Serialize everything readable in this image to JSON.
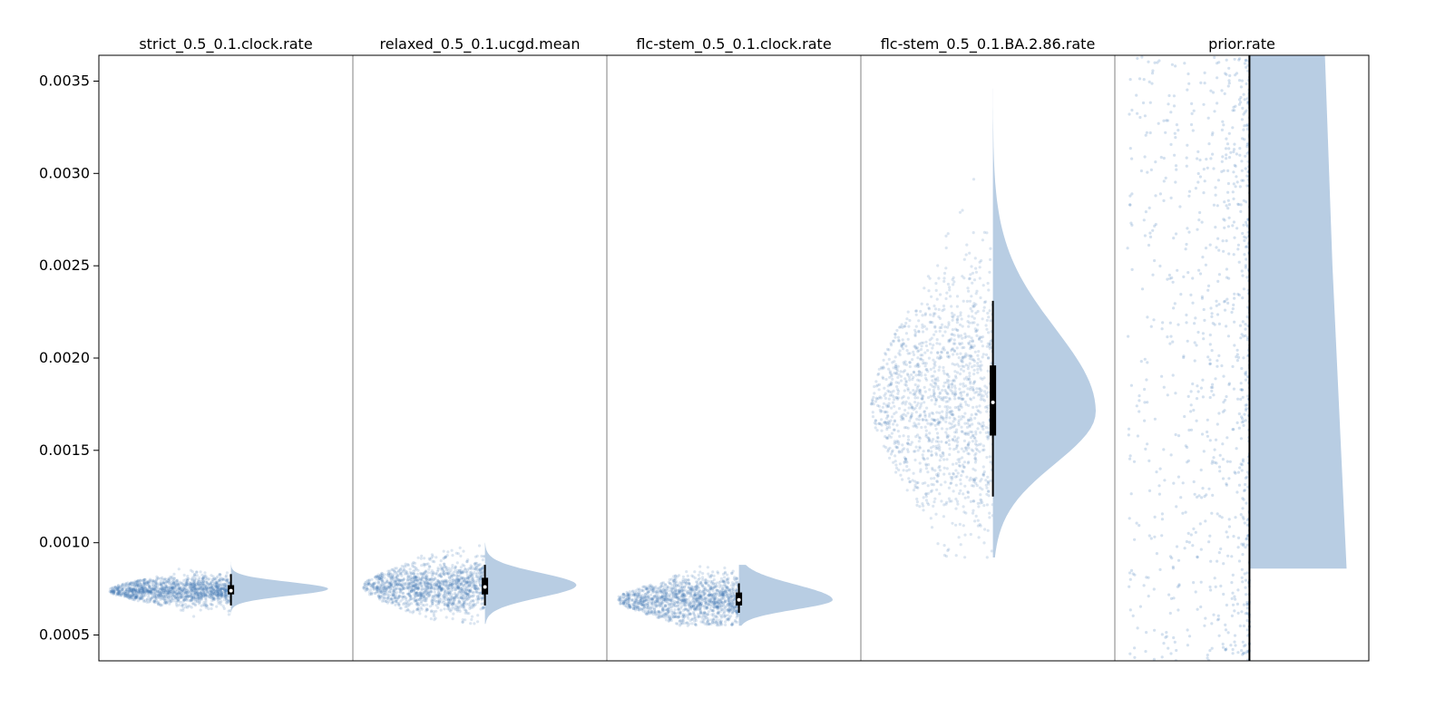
{
  "chart_data": {
    "type": "violin",
    "style": "half-violin with jittered strip and box overlay",
    "ylim": [
      0.00036,
      0.00364
    ],
    "yticks": [
      0.0005,
      0.001,
      0.0015,
      0.002,
      0.0025,
      0.003,
      0.0035
    ],
    "ytick_labels": [
      "0.0005",
      "0.0010",
      "0.0015",
      "0.0020",
      "0.0025",
      "0.0030",
      "0.0035"
    ],
    "grid": false,
    "colors": {
      "points": "#3d77b4",
      "violin": "#b8cde3",
      "box": "#000000",
      "median": "#ffffff",
      "frame": "#000000",
      "divider": "#808080"
    },
    "panels": [
      {
        "title": "strict_0.5_0.1.clock.rate",
        "median": 0.00074,
        "q1": 0.00072,
        "q3": 0.00077,
        "whisker_low": 0.00066,
        "whisker_high": 0.00083,
        "min": 0.00058,
        "max": 0.00095,
        "mode": 0.00075,
        "violin_width": 0.85
      },
      {
        "title": "relaxed_0.5_0.1.ucgd.mean",
        "median": 0.00076,
        "q1": 0.00072,
        "q3": 0.00081,
        "whisker_low": 0.00066,
        "whisker_high": 0.00088,
        "min": 0.00056,
        "max": 0.001,
        "mode": 0.00077,
        "violin_width": 0.8
      },
      {
        "title": "flc-stem_0.5_0.1.clock.rate",
        "median": 0.00069,
        "q1": 0.00066,
        "q3": 0.00073,
        "whisker_low": 0.00062,
        "whisker_high": 0.00078,
        "min": 0.00055,
        "max": 0.00088,
        "mode": 0.00069,
        "violin_width": 0.82
      },
      {
        "title": "flc-stem_0.5_0.1.BA.2.86.rate",
        "median": 0.00176,
        "q1": 0.00158,
        "q3": 0.00196,
        "whisker_low": 0.00125,
        "whisker_high": 0.00231,
        "min": 0.00092,
        "max": 0.00346,
        "mode": 0.00171,
        "violin_width": 0.9
      },
      {
        "title": "prior.rate",
        "median": null,
        "violin_bottom": 0.00086,
        "violin_top_width": 0.66,
        "violin_bottom_width": 0.85,
        "min": 0.00036,
        "max": 0.00364
      }
    ]
  }
}
